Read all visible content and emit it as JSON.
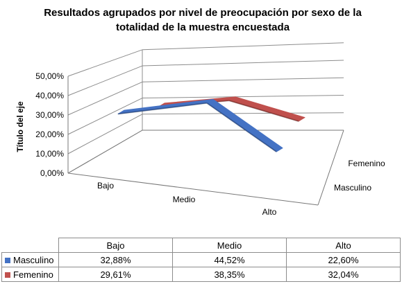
{
  "chart_data": {
    "type": "line",
    "variant": "3d-line",
    "title_lines": [
      "Resultados agrupados por nivel de preocupación por sexo de la",
      "totalidad de la muestra encuestada"
    ],
    "ylabel": "Título del eje",
    "categories": [
      "Bajo",
      "Medio",
      "Alto"
    ],
    "series": [
      {
        "name": "Masculino",
        "values": [
          32.88,
          44.52,
          22.6
        ],
        "color": "#4472c4"
      },
      {
        "name": "Femenino",
        "values": [
          29.61,
          38.35,
          32.04
        ],
        "color": "#c0504d"
      }
    ],
    "ylim": [
      0,
      50
    ],
    "y_ticks": [
      "0,00%",
      "10,00%",
      "20,00%",
      "30,00%",
      "40,00%",
      "50,00%"
    ],
    "grid": true,
    "data_table": {
      "headers": [
        "Bajo",
        "Medio",
        "Alto"
      ],
      "rows": [
        {
          "label": "Masculino",
          "color": "#4472c4",
          "cells": [
            "32,88%",
            "44,52%",
            "22,60%"
          ]
        },
        {
          "label": "Femenino",
          "color": "#c0504d",
          "cells": [
            "29,61%",
            "38,35%",
            "32,04%"
          ]
        }
      ]
    }
  }
}
